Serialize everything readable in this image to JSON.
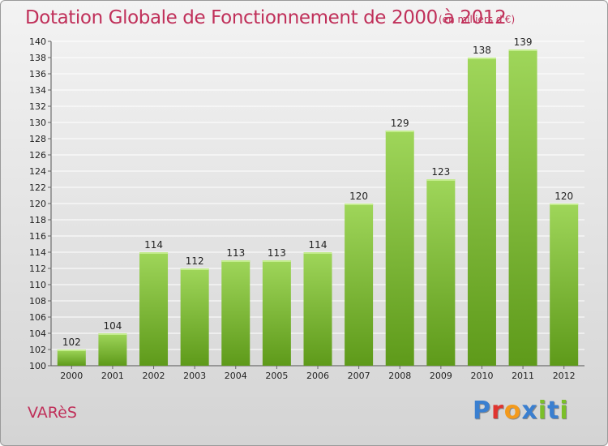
{
  "title": "Dotation Globale de Fonctionnement de 2000 à 2012",
  "unit_note": "(en milliers d'€)",
  "commune": "VARèS",
  "logo": {
    "text": "Proxiti",
    "letter_colors": [
      "#3a7fd0",
      "#e0342f",
      "#f39a1c",
      "#3a7fd0",
      "#7bbf2a",
      "#3a7fd0",
      "#7bbf2a"
    ]
  },
  "colors": {
    "title": "#c0305a",
    "bar_top": "#9fd65a",
    "bar_bottom": "#5e9a1a",
    "grid": "#ffffff"
  },
  "chart_data": {
    "type": "bar",
    "title": "Dotation Globale de Fonctionnement de 2000 à 2012",
    "categories": [
      "2000",
      "2001",
      "2002",
      "2003",
      "2004",
      "2005",
      "2006",
      "2007",
      "2008",
      "2009",
      "2010",
      "2011",
      "2012"
    ],
    "values": [
      102,
      104,
      114,
      112,
      113,
      113,
      114,
      120,
      129,
      123,
      138,
      139,
      120
    ],
    "ylim": [
      100,
      140
    ],
    "yticks": [
      100,
      102,
      104,
      106,
      108,
      110,
      112,
      114,
      116,
      118,
      120,
      122,
      124,
      126,
      128,
      130,
      132,
      134,
      136,
      138,
      140
    ],
    "grid": true,
    "data_labels": true
  }
}
